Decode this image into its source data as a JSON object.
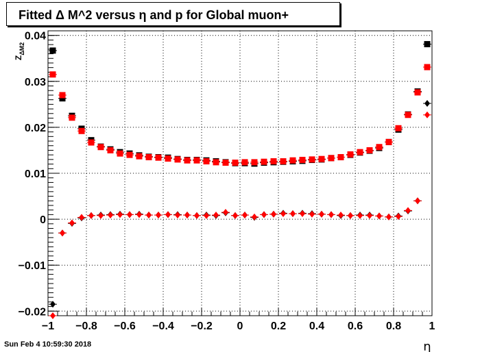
{
  "title": "Fitted Δ M^2 versus η and p for Global muon+",
  "footer": "Sun Feb  4 10:59:30 2018",
  "chart_data": {
    "type": "scatter",
    "xlabel": "η",
    "ylabel": "Z_{ΔM2}",
    "xlim": [
      -1,
      1
    ],
    "ylim": [
      -0.021,
      0.041
    ],
    "x_ticks": [
      "−1",
      "−0.8",
      "−0.6",
      "−0.4",
      "−0.2",
      "0",
      "0.2",
      "0.4",
      "0.6",
      "0.8",
      "1"
    ],
    "x_tick_values": [
      -1,
      -0.8,
      -0.6,
      -0.4,
      -0.2,
      0,
      0.2,
      0.4,
      0.6,
      0.8,
      1
    ],
    "y_ticks": [
      "−0.02",
      "−0.01",
      "0",
      "0.01",
      "0.02",
      "0.03",
      "0.04"
    ],
    "y_tick_values": [
      -0.02,
      -0.01,
      0,
      0.01,
      0.02,
      0.03,
      0.04
    ],
    "grid": true,
    "x": [
      -0.975,
      -0.925,
      -0.875,
      -0.825,
      -0.775,
      -0.725,
      -0.675,
      -0.625,
      -0.575,
      -0.525,
      -0.475,
      -0.425,
      -0.375,
      -0.325,
      -0.275,
      -0.225,
      -0.175,
      -0.125,
      -0.075,
      -0.025,
      0.025,
      0.075,
      0.125,
      0.175,
      0.225,
      0.275,
      0.325,
      0.375,
      0.425,
      0.475,
      0.525,
      0.575,
      0.625,
      0.675,
      0.725,
      0.775,
      0.825,
      0.875,
      0.925,
      0.975
    ],
    "series": [
      {
        "marker": "square",
        "color": "#000000",
        "values": [
          0.0367,
          0.0263,
          0.0225,
          0.0197,
          0.0172,
          0.0158,
          0.0152,
          0.0146,
          0.0143,
          0.0139,
          0.0136,
          0.0135,
          0.0134,
          0.0131,
          0.0129,
          0.0129,
          0.0128,
          0.0126,
          0.0124,
          0.0122,
          0.0122,
          0.0121,
          0.0123,
          0.0124,
          0.0125,
          0.0126,
          0.0127,
          0.0129,
          0.013,
          0.0133,
          0.0135,
          0.014,
          0.0145,
          0.0149,
          0.0155,
          0.0168,
          0.0195,
          0.0228,
          0.0278,
          0.0381
        ]
      },
      {
        "marker": "square",
        "color": "#ff0000",
        "values": [
          0.0315,
          0.027,
          0.0221,
          0.0192,
          0.0167,
          0.0157,
          0.015,
          0.0143,
          0.014,
          0.0137,
          0.0135,
          0.0134,
          0.0132,
          0.013,
          0.0128,
          0.0128,
          0.0126,
          0.0124,
          0.0123,
          0.0123,
          0.0124,
          0.0124,
          0.0125,
          0.0126,
          0.0126,
          0.0128,
          0.0129,
          0.013,
          0.0131,
          0.0133,
          0.0135,
          0.0141,
          0.0146,
          0.015,
          0.0157,
          0.0168,
          0.0198,
          0.0227,
          0.0276,
          0.0331
        ]
      },
      {
        "marker": "diamond",
        "color": "#000000",
        "values": [
          -0.0185,
          -0.003,
          -0.0009,
          0.0003,
          0.0008,
          0.0009,
          0.001,
          0.0011,
          0.001,
          0.0011,
          0.0009,
          0.0009,
          0.001,
          0.001,
          0.0009,
          0.0008,
          0.0009,
          0.0008,
          0.0014,
          0.0008,
          0.0009,
          0.0004,
          0.001,
          0.0011,
          0.0013,
          0.0012,
          0.0013,
          0.0012,
          0.0011,
          0.001,
          0.0008,
          0.0008,
          0.0009,
          0.0009,
          0.0007,
          0.0005,
          0.0007,
          0.0018,
          0.004,
          0.0252
        ]
      },
      {
        "marker": "diamond",
        "color": "#ff0000",
        "values": [
          -0.021,
          -0.003,
          -0.0008,
          0.0004,
          0.0008,
          0.0008,
          0.0009,
          0.001,
          0.001,
          0.001,
          0.0009,
          0.0009,
          0.001,
          0.0009,
          0.0009,
          0.0008,
          0.0008,
          0.0009,
          0.0015,
          0.0008,
          0.0009,
          0.0005,
          0.001,
          0.0011,
          0.0012,
          0.0012,
          0.0012,
          0.0011,
          0.0011,
          0.001,
          0.0009,
          0.0008,
          0.0008,
          0.0008,
          0.0007,
          0.0005,
          0.0006,
          0.0019,
          0.004,
          0.0227
        ]
      }
    ]
  }
}
